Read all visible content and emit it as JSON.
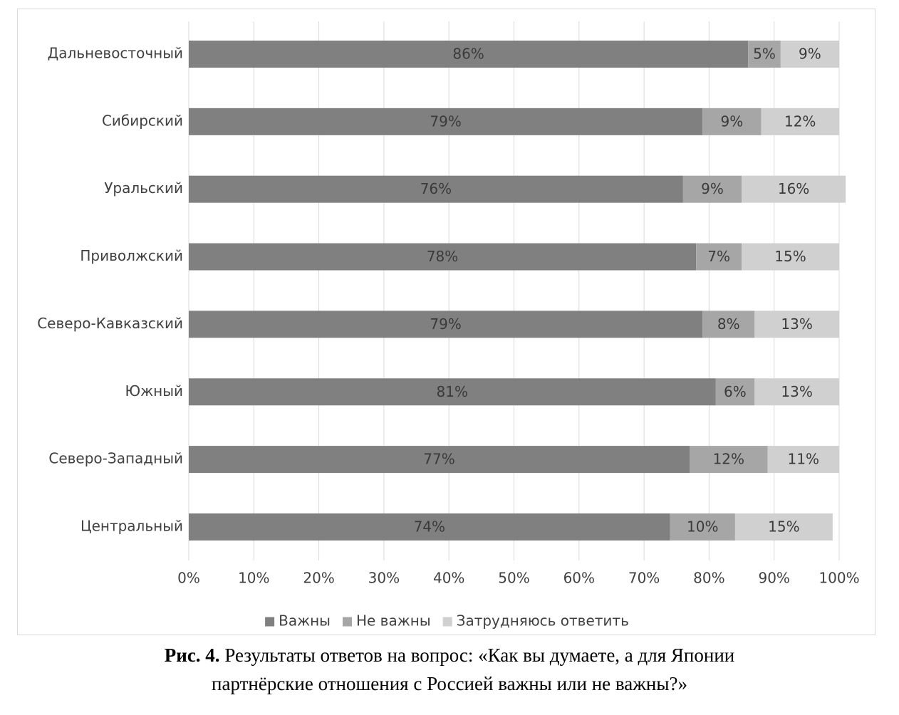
{
  "chart_data": {
    "type": "bar",
    "orientation": "horizontal",
    "stacked": "percent",
    "categories": [
      "Дальневосточный",
      "Сибирский",
      "Уральский",
      "Приволжский",
      "Северо-Кавказский",
      "Южный",
      "Северо-Западный",
      "Центральный"
    ],
    "series": [
      {
        "name": "Важны",
        "values": [
          86,
          79,
          76,
          78,
          79,
          81,
          77,
          74
        ],
        "color": "#808080"
      },
      {
        "name": "Не важны",
        "values": [
          5,
          9,
          9,
          7,
          8,
          6,
          12,
          10
        ],
        "color": "#a6a6a6"
      },
      {
        "name": "Затрудняюсь ответить",
        "values": [
          9,
          12,
          16,
          15,
          13,
          13,
          11,
          15
        ],
        "color": "#d0d0d0"
      }
    ],
    "data_labels": [
      [
        "86%",
        "79%",
        "76%",
        "78%",
        "79%",
        "81%",
        "77%",
        "74%"
      ],
      [
        "5%",
        "9%",
        "9%",
        "7%",
        "8%",
        "6%",
        "12%",
        "10%"
      ],
      [
        "9%",
        "12%",
        "16%",
        "15%",
        "13%",
        "13%",
        "11%",
        "15%"
      ]
    ],
    "xlim": [
      0,
      100
    ],
    "x_ticks": [
      "0%",
      "10%",
      "20%",
      "30%",
      "40%",
      "50%",
      "60%",
      "70%",
      "80%",
      "90%",
      "100%"
    ],
    "grid": true,
    "legend_position": "bottom",
    "title": "",
    "xlabel": "",
    "ylabel": ""
  },
  "caption": {
    "prefix": "Рис. 4.",
    "line1": " Результаты ответов на вопрос: «Как вы думаете, а для Японии",
    "line2": "партнёрские отношения с Россией важны или не важны?»"
  }
}
